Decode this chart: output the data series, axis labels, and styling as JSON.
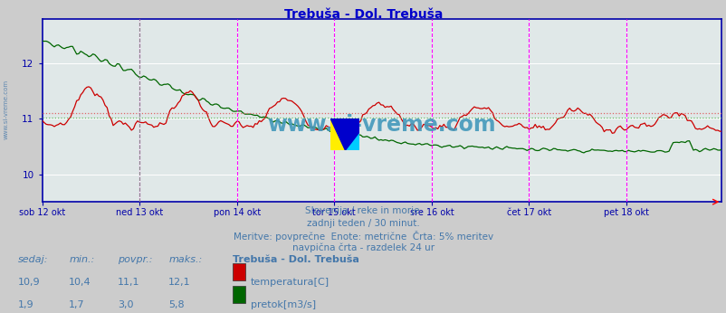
{
  "title": "Trebuša - Dol. Trebuša",
  "title_color": "#0000cc",
  "bg_color": "#cccccc",
  "plot_bg_color": "#e0e8e8",
  "grid_color": "#ffffff",
  "axis_color": "#0000aa",
  "text_color": "#4477aa",
  "x_labels": [
    "sob 12 okt",
    "ned 13 okt",
    "pon 14 okt",
    "tor 15 okt",
    "sre 16 okt",
    "čet 17 okt",
    "pet 18 okt"
  ],
  "x_positions": [
    0,
    48,
    96,
    144,
    192,
    240,
    288
  ],
  "total_points": 336,
  "temp_min": 10.4,
  "temp_max": 12.1,
  "temp_avg": 11.1,
  "temp_cur": 10.9,
  "flow_min": 1.7,
  "flow_max": 5.8,
  "flow_avg": 3.0,
  "flow_cur": 1.9,
  "temp_color": "#cc0000",
  "flow_color": "#006600",
  "avg_line_color_temp": "#dd6666",
  "avg_line_color_flow": "#66bb66",
  "vline_color": "#ff00ff",
  "vline_day_color": "#888888",
  "subtitle_lines": [
    "Slovenija / reke in morje.",
    "zadnji teden / 30 minut.",
    "Meritve: povprečne  Enote: metrične  Črta: 5% meritev",
    "navpična črta - razdelek 24 ur"
  ],
  "legend_title": "Trebuša - Dol. Trebuša",
  "legend_items": [
    {
      "label": "temperatura[C]",
      "color": "#cc0000"
    },
    {
      "label": "pretok[m3/s]",
      "color": "#006600"
    }
  ],
  "table_headers": [
    "sedaj:",
    "min.:",
    "povpr.:",
    "maks.:"
  ],
  "table_data": [
    [
      "10,9",
      "10,4",
      "11,1",
      "12,1"
    ],
    [
      "1,9",
      "1,7",
      "3,0",
      "5,8"
    ]
  ],
  "watermark": "www.si-vreme.com",
  "watermark_color": "#4499bb",
  "ylim": [
    9.5,
    12.8
  ],
  "temp_yticks": [
    10,
    11,
    12
  ],
  "temp_display_min": 9.5,
  "temp_display_max": 12.8,
  "flow_display_min": 0.0,
  "flow_display_max": 6.5
}
